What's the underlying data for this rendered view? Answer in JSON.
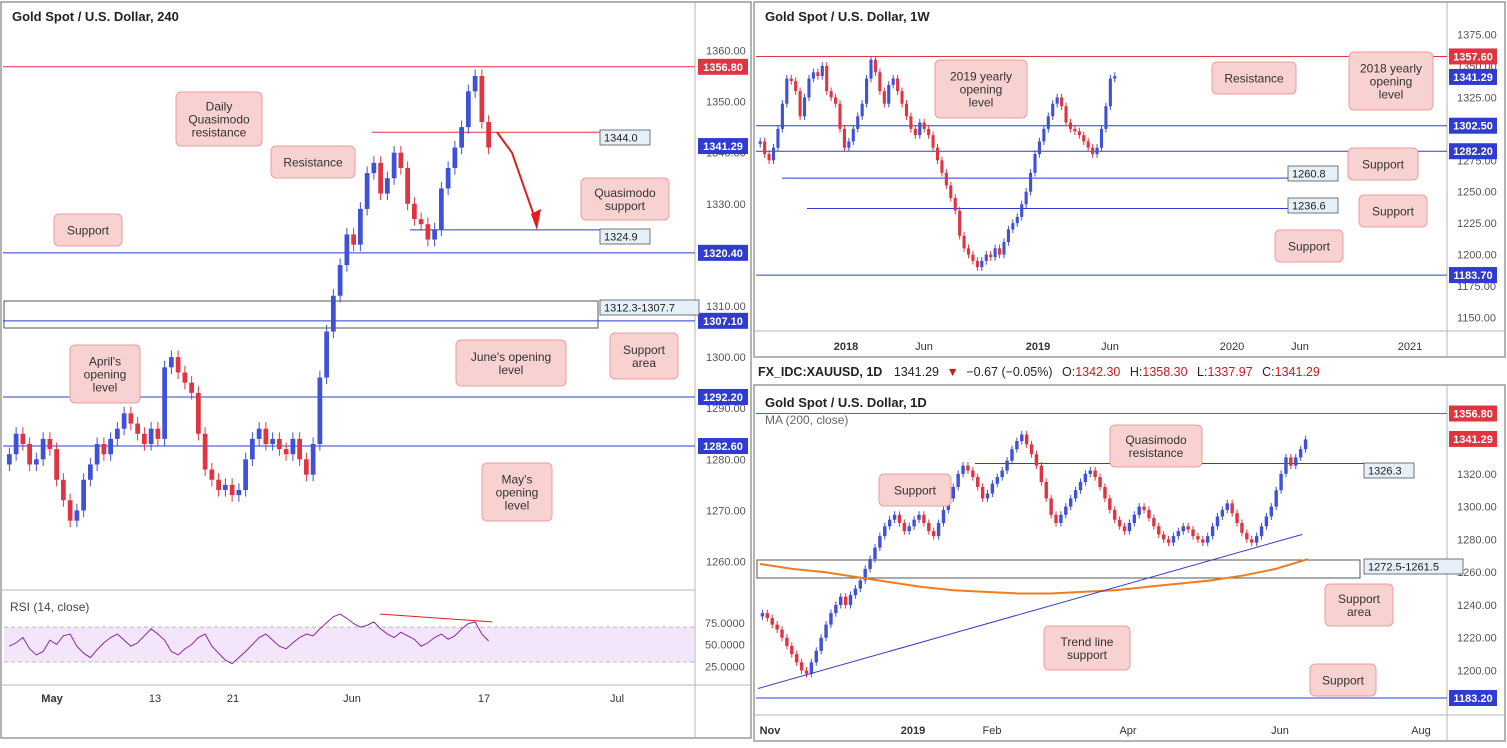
{
  "colors": {
    "bull": "#3f51d6",
    "bear": "#e03440",
    "support_line": "#2f3bd1",
    "resistance_line": "#e03440",
    "label_fill": "#f8d1d1",
    "label_stroke": "#ec9c9c",
    "axis_text": "#555555",
    "rsi_line": "#8e24aa",
    "rsi_band": "#f3e6fb",
    "ma_line": "#ef7c21",
    "trend_line": "#2f3bd1",
    "red_arrow": "#e01e1e"
  },
  "chart_data": [
    {
      "id": "h4",
      "type": "candlestick",
      "title": "Gold Spot / U.S. Dollar, 240",
      "ylim": [
        1256,
        1364
      ],
      "yticks": [
        "1260.00",
        "1270.00",
        "1280.00",
        "1290.00",
        "1300.00",
        "1310.00",
        "1320.00",
        "1330.00",
        "1340.00",
        "1350.00",
        "1360.00"
      ],
      "xticks": [
        "May",
        "13",
        "21",
        "Jun",
        "17",
        "Jul"
      ],
      "close": [
        1281,
        1285,
        1283,
        1279,
        1280,
        1284,
        1282,
        1276,
        1272,
        1268,
        1270,
        1276,
        1279,
        1283,
        1281,
        1284,
        1286,
        1289,
        1287,
        1285,
        1283,
        1286,
        1284,
        1298,
        1300,
        1297,
        1295,
        1293,
        1285,
        1278,
        1276,
        1274,
        1275,
        1273,
        1274,
        1280,
        1284,
        1286,
        1283,
        1284,
        1282,
        1281,
        1284,
        1280,
        1277,
        1283,
        1296,
        1305,
        1312,
        1318,
        1324,
        1322,
        1329,
        1336,
        1338,
        1332,
        1335,
        1340,
        1337,
        1330,
        1327,
        1326,
        1323,
        1325,
        1333,
        1337,
        1341,
        1345,
        1352,
        1355,
        1346,
        1341
      ],
      "price_tags": [
        {
          "value": 1356.8,
          "label": "1356.80",
          "color": "#e03440"
        },
        {
          "value": 1341.29,
          "label": "1341.29",
          "color": "#2f3bd1"
        },
        {
          "value": 1320.4,
          "label": "1320.40",
          "color": "#2f3bd1"
        },
        {
          "value": 1307.1,
          "label": "1307.10",
          "color": "#2f3bd1"
        },
        {
          "value": 1292.2,
          "label": "1292.20",
          "color": "#2f3bd1"
        },
        {
          "value": 1282.6,
          "label": "1282.60",
          "color": "#2f3bd1"
        }
      ],
      "level_boxes": [
        {
          "value": 1344.0,
          "label": "1344.0"
        },
        {
          "value": 1324.9,
          "label": "1324.9"
        },
        {
          "value": 1312.3,
          "label": "1312.3-1307.7"
        }
      ],
      "annotations": [
        {
          "text": "Daily\nQuasimodo\nresistance"
        },
        {
          "text": "Resistance"
        },
        {
          "text": "Quasimodo\nsupport"
        },
        {
          "text": "Support"
        },
        {
          "text": "June's opening\nlevel"
        },
        {
          "text": "Support\narea"
        },
        {
          "text": "April's\nopening\nlevel"
        },
        {
          "text": "May's\nopening\nlevel"
        }
      ],
      "rsi": {
        "label": "RSI (14, close)",
        "yticks": [
          "75.0000",
          "50.0000",
          "25.0000"
        ],
        "band": [
          30,
          70
        ],
        "values": [
          48,
          52,
          58,
          45,
          38,
          42,
          55,
          50,
          60,
          62,
          48,
          40,
          35,
          44,
          52,
          58,
          62,
          55,
          48,
          52,
          60,
          68,
          62,
          55,
          42,
          38,
          45,
          50,
          58,
          62,
          48,
          40,
          32,
          28,
          35,
          42,
          50,
          58,
          62,
          55,
          48,
          45,
          52,
          58,
          62,
          60,
          68,
          75,
          82,
          85,
          80,
          74,
          70,
          72,
          76,
          68,
          62,
          58,
          64,
          60,
          56,
          48,
          52,
          58,
          62,
          56,
          60,
          68,
          74,
          76,
          62,
          54
        ]
      }
    },
    {
      "id": "weekly",
      "type": "candlestick",
      "title": "Gold Spot / U.S. Dollar, 1W",
      "ylim": [
        1140,
        1385
      ],
      "yticks": [
        "1150.00",
        "1175.00",
        "1200.00",
        "1225.00",
        "1250.00",
        "1275.00",
        "1300.00",
        "1325.00",
        "1350.00",
        "1375.00"
      ],
      "xticks": [
        "2018",
        "Jun",
        "2019",
        "Jun",
        "2020",
        "Jun",
        "2021"
      ],
      "close": [
        1290,
        1280,
        1275,
        1285,
        1300,
        1320,
        1340,
        1338,
        1330,
        1310,
        1325,
        1340,
        1345,
        1342,
        1350,
        1330,
        1325,
        1320,
        1300,
        1285,
        1290,
        1300,
        1310,
        1320,
        1340,
        1355,
        1345,
        1330,
        1320,
        1335,
        1340,
        1330,
        1320,
        1310,
        1300,
        1295,
        1305,
        1300,
        1295,
        1285,
        1275,
        1265,
        1255,
        1245,
        1235,
        1215,
        1205,
        1200,
        1195,
        1190,
        1195,
        1200,
        1198,
        1205,
        1200,
        1210,
        1220,
        1225,
        1230,
        1240,
        1250,
        1265,
        1280,
        1290,
        1300,
        1310,
        1320,
        1325,
        1318,
        1305,
        1300,
        1298,
        1295,
        1290,
        1285,
        1280,
        1285,
        1300,
        1318,
        1340,
        1342
      ],
      "price_tags": [
        {
          "value": 1357.6,
          "label": "1357.60",
          "color": "#e03440"
        },
        {
          "value": 1341.29,
          "label": "1341.29",
          "color": "#2f3bd1"
        },
        {
          "value": 1302.5,
          "label": "1302.50",
          "color": "#2f3bd1"
        },
        {
          "value": 1282.2,
          "label": "1282.20",
          "color": "#2f3bd1"
        },
        {
          "value": 1183.7,
          "label": "1183.70",
          "color": "#2f3bd1"
        }
      ],
      "level_boxes": [
        {
          "value": 1260.8,
          "label": "1260.8"
        },
        {
          "value": 1236.6,
          "label": "1236.6"
        }
      ],
      "annotations": [
        {
          "text": "2019 yearly\nopening\nlevel"
        },
        {
          "text": "Resistance"
        },
        {
          "text": "2018 yearly\nopening\nlevel"
        },
        {
          "text": "Support"
        },
        {
          "text": "Support"
        },
        {
          "text": "Support"
        }
      ]
    },
    {
      "id": "daily",
      "type": "candlestick",
      "title": "Gold Spot / U.S. Dollar, 1D",
      "subtitle": "MA (200, close)",
      "ylim": [
        1182,
        1362
      ],
      "yticks": [
        "1200.00",
        "1220.00",
        "1240.00",
        "1260.00",
        "1280.00",
        "1300.00",
        "1320.00"
      ],
      "xticks": [
        "Nov",
        "2019",
        "Feb",
        "Apr",
        "Jun",
        "Aug"
      ],
      "close": [
        1235,
        1232,
        1228,
        1225,
        1220,
        1215,
        1210,
        1205,
        1200,
        1198,
        1205,
        1212,
        1220,
        1228,
        1235,
        1240,
        1245,
        1240,
        1246,
        1250,
        1255,
        1262,
        1268,
        1275,
        1282,
        1288,
        1292,
        1295,
        1290,
        1285,
        1288,
        1292,
        1295,
        1290,
        1285,
        1282,
        1290,
        1298,
        1305,
        1312,
        1320,
        1325,
        1322,
        1318,
        1312,
        1305,
        1308,
        1314,
        1318,
        1322,
        1328,
        1335,
        1340,
        1344,
        1338,
        1332,
        1325,
        1315,
        1305,
        1295,
        1290,
        1295,
        1300,
        1305,
        1310,
        1315,
        1320,
        1322,
        1318,
        1312,
        1305,
        1298,
        1292,
        1288,
        1285,
        1290,
        1295,
        1300,
        1298,
        1293,
        1288,
        1283,
        1280,
        1278,
        1282,
        1285,
        1288,
        1286,
        1282,
        1280,
        1278,
        1282,
        1288,
        1294,
        1298,
        1302,
        1296,
        1290,
        1284,
        1280,
        1278,
        1282,
        1288,
        1294,
        1300,
        1310,
        1320,
        1330,
        1325,
        1330,
        1335,
        1341
      ],
      "ma200": [
        1265,
        1262,
        1260,
        1257,
        1254,
        1251,
        1249,
        1248,
        1247,
        1247,
        1248,
        1249,
        1251,
        1253,
        1255,
        1258,
        1262,
        1268
      ],
      "price_tags": [
        {
          "value": 1356.8,
          "label": "1356.80",
          "color": "#e03440"
        },
        {
          "value": 1341.29,
          "label": "1341.29",
          "color": "#e03440"
        },
        {
          "value": 1183.2,
          "label": "1183.20",
          "color": "#2f3bd1"
        }
      ],
      "level_boxes": [
        {
          "value": 1326.3,
          "label": "1326.3"
        },
        {
          "value": 1272.5,
          "label": "1272.5-1261.5"
        }
      ],
      "annotations": [
        {
          "text": "Quasimodo\nresistance"
        },
        {
          "text": "Support"
        },
        {
          "text": "Trend line\nsupport"
        },
        {
          "text": "Support\narea"
        },
        {
          "text": "Support"
        }
      ]
    }
  ],
  "daily_header": {
    "symbol": "FX_IDC:XAUUSD, 1D",
    "last": "1341.29",
    "change": "−0.67 (−0.05%)",
    "o_label": "O:",
    "o_value": "1342.30",
    "h_label": "H:",
    "h_value": "1358.30",
    "l_label": "L:",
    "l_value": "1337.97",
    "c_label": "C:",
    "c_value": "1341.29"
  }
}
